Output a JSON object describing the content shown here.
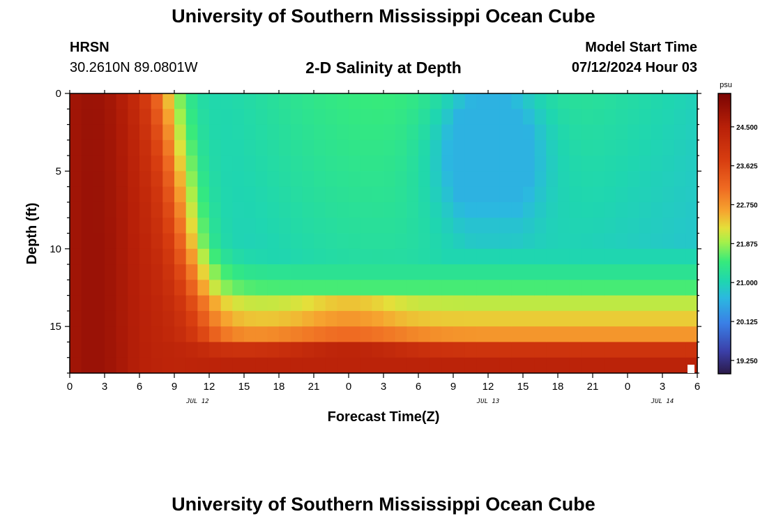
{
  "page_title": "University of Southern Mississippi Ocean Cube",
  "footer_title": "University of Southern Mississippi Ocean Cube",
  "station": {
    "id": "HRSN",
    "coords": "30.2610N  89.0801W"
  },
  "model_start": {
    "label": "Model Start Time",
    "value": "07/12/2024 Hour 03"
  },
  "chart_data": {
    "type": "heatmap",
    "title": "2-D Salinity at Depth",
    "xlabel": "Forecast Time(Z)",
    "ylabel": "Depth (ft)",
    "x_ticks": [
      "0",
      "3",
      "6",
      "9",
      "12",
      "15",
      "18",
      "21",
      "0",
      "3",
      "6",
      "9",
      "12",
      "15",
      "18",
      "21",
      "0",
      "3",
      "6"
    ],
    "x_range_hours": [
      0,
      54
    ],
    "date_labels": [
      {
        "label": "JUL 12",
        "hour": 11
      },
      {
        "label": "JUL 13",
        "hour": 36
      },
      {
        "label": "JUL 14",
        "hour": 51
      }
    ],
    "y_ticks": [
      "0",
      "5",
      "10",
      "15"
    ],
    "y_range_ft": [
      0,
      18
    ],
    "y_inverted": true,
    "colorbar": {
      "unit": "psu",
      "min": 18.95,
      "max": 25.25,
      "tick_labels": [
        "24.500",
        "23.625",
        "22.750",
        "21.875",
        "21.000",
        "20.125",
        "19.250"
      ],
      "tick_values": [
        24.5,
        23.625,
        22.75,
        21.875,
        21.0,
        20.125,
        19.25
      ]
    },
    "grid": false
  }
}
